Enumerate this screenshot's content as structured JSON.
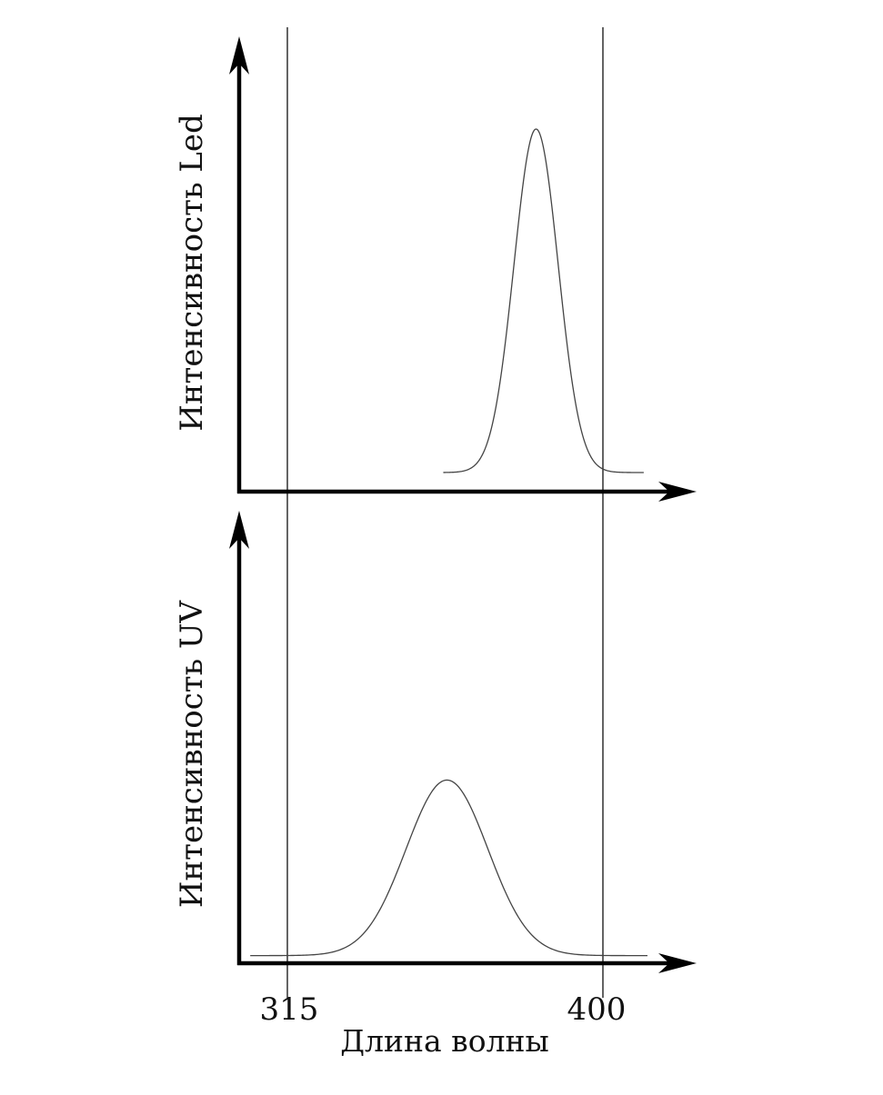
{
  "chart_data": [
    {
      "type": "line",
      "ylabel": "Интенсивность Led",
      "xlabel": "",
      "series": [
        {
          "peak_x": 382,
          "fwhm": 14,
          "peak_y": 0.95,
          "baseline": 0.05,
          "x_range": [
            357,
            411
          ]
        }
      ]
    },
    {
      "type": "line",
      "ylabel": "Интенсивность UV",
      "xlabel": "Длина волны",
      "x_ticks": [
        "315",
        "400"
      ],
      "series": [
        {
          "peak_x": 358,
          "fwhm": 26,
          "peak_y": 0.48,
          "baseline": 0.02,
          "x_range": [
            305,
            412
          ]
        }
      ]
    }
  ],
  "reference_lines": [
    315,
    400
  ],
  "colors": {
    "axis": "#000000",
    "curve": "#444444",
    "ref_line": "#222222"
  }
}
